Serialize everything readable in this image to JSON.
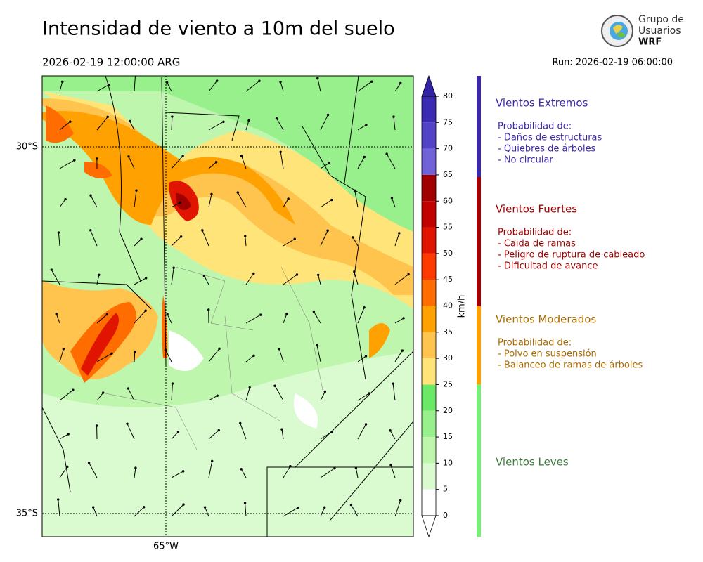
{
  "title": "Intensidad de viento a 10m del suelo",
  "valid_time": "2026-02-19 12:00:00 ARG",
  "run": "Run: 2026-02-19 06:00:00",
  "logo": {
    "line1": "Grupo de",
    "line2": "Usuarios",
    "line3": "WRF"
  },
  "map": {
    "lat_labels": [
      "30°S",
      "35°S"
    ],
    "lon_labels": [
      "65°W"
    ]
  },
  "colorbar": {
    "label": "km/h",
    "ticks": [
      0,
      5,
      10,
      15,
      20,
      25,
      30,
      35,
      40,
      45,
      50,
      55,
      60,
      65,
      70,
      75,
      80
    ],
    "colors": [
      "#ffffff",
      "#d9fbcf",
      "#bff6ae",
      "#98f08c",
      "#6be865",
      "#ffe47a",
      "#ffc44d",
      "#ffa100",
      "#ff6d00",
      "#ff3a00",
      "#e01400",
      "#c20000",
      "#a00000",
      "#7262d8",
      "#5242c8",
      "#3b2bb2",
      "#3222a4"
    ]
  },
  "legend": [
    {
      "title": "Vientos Extremos",
      "color": "#3a28a8",
      "bar": "#3a28a8",
      "items": [
        "Probabilidad de:",
        "- Daños de estructuras",
        "- Quiebres de árboles",
        "- No circular"
      ]
    },
    {
      "title": "Vientos Fuertes",
      "color": "#a00000",
      "bar": "#a00000",
      "items": [
        "Probabilidad de:",
        "- Caida de ramas",
        "- Peligro de ruptura de cableado",
        "- Dificultad de avance"
      ]
    },
    {
      "title": "Vientos Moderados",
      "color": "#a86a00",
      "bar": "#ffa000",
      "items": [
        "Probabilidad de:",
        "- Polvo en suspensión",
        "- Balanceo de ramas de árboles"
      ]
    },
    {
      "title": "Vientos Leves",
      "color": "#3a7a3a",
      "bar": "#77ee77",
      "items": []
    }
  ]
}
